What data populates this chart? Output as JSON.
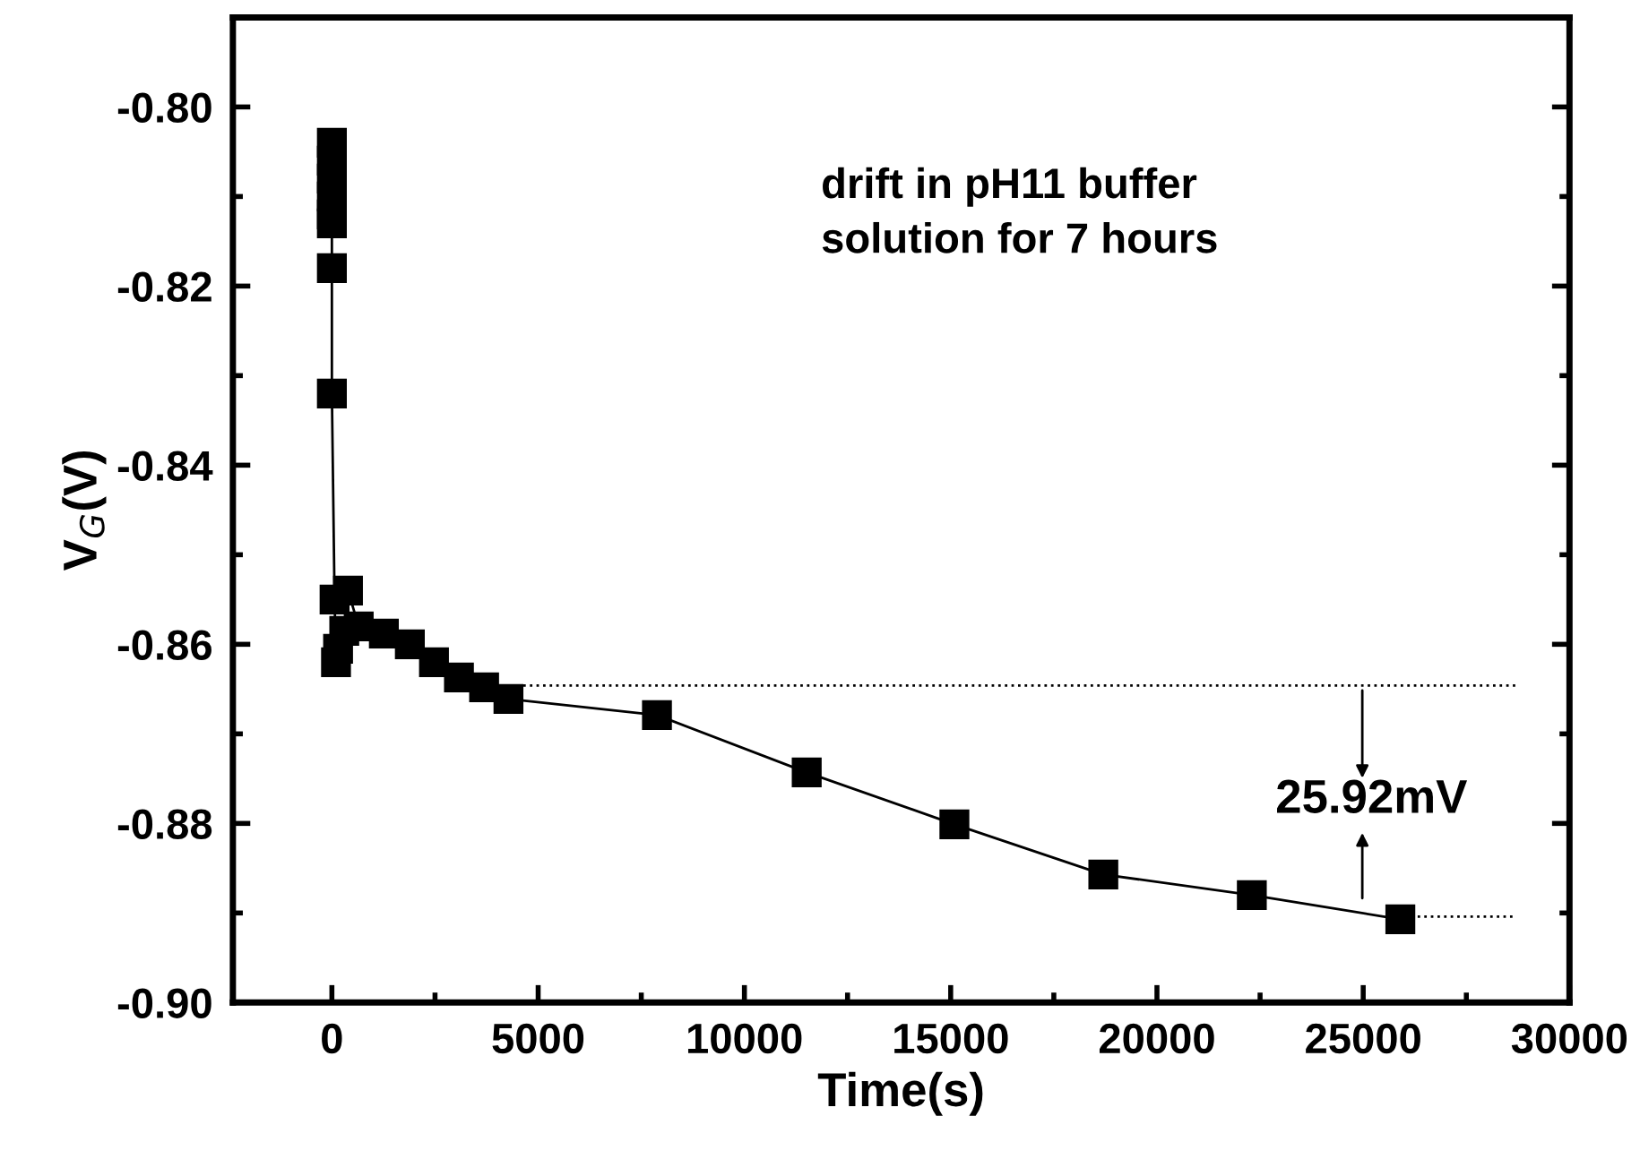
{
  "chart_data": {
    "type": "line",
    "xlabel": "Time(s)",
    "ylabel": "V$_{G}$(V)",
    "xlim": [
      -2400,
      30000
    ],
    "xticks": [
      0,
      5000,
      10000,
      15000,
      20000,
      25000,
      30000
    ],
    "ylim": [
      -0.9,
      -0.79
    ],
    "yticks": [
      {
        "value": -0.9,
        "label": "-0.90"
      },
      {
        "value": -0.88,
        "label": "-0.88"
      },
      {
        "value": -0.86,
        "label": "-0.86"
      },
      {
        "value": -0.84,
        "label": "-0.84"
      },
      {
        "value": -0.82,
        "label": "-0.82"
      },
      {
        "value": -0.8,
        "label": "-0.80"
      }
    ],
    "grid": false,
    "series": [
      {
        "color": "#000000",
        "marker": "square",
        "line_style": "solid",
        "x": [
          0,
          0,
          0,
          0,
          0,
          0,
          0,
          0,
          65,
          100,
          150,
          300,
          390,
          650,
          1260,
          1890,
          2475,
          3080,
          3690,
          4280,
          7880,
          11510,
          15090,
          18700,
          22300,
          25900
        ],
        "values": [
          -0.804,
          -0.806,
          -0.808,
          -0.81,
          -0.812,
          -0.813,
          -0.818,
          -0.832,
          -0.855,
          -0.862,
          -0.8605,
          -0.8585,
          -0.854,
          -0.858,
          -0.8588,
          -0.86,
          -0.862,
          -0.8637,
          -0.8648,
          -0.8661,
          -0.8679,
          -0.8743,
          -0.8801,
          -0.8857,
          -0.888,
          -0.8907
        ]
      },
      {
        "type": "line",
        "color": "#000000",
        "marker": "none",
        "line_style": "dotted",
        "x": [
          4000,
          28700
        ],
        "values": [
          -0.8646,
          -0.8646
        ]
      },
      {
        "type": "line",
        "color": "#000000",
        "marker": "none",
        "line_style": "dotted",
        "x": [
          26000,
          28700
        ],
        "values": [
          -0.8904,
          -0.8904
        ]
      }
    ],
    "annotations": [
      "drift in pH11 buffer\nsolution for 7 hours",
      "25.92mV"
    ]
  }
}
